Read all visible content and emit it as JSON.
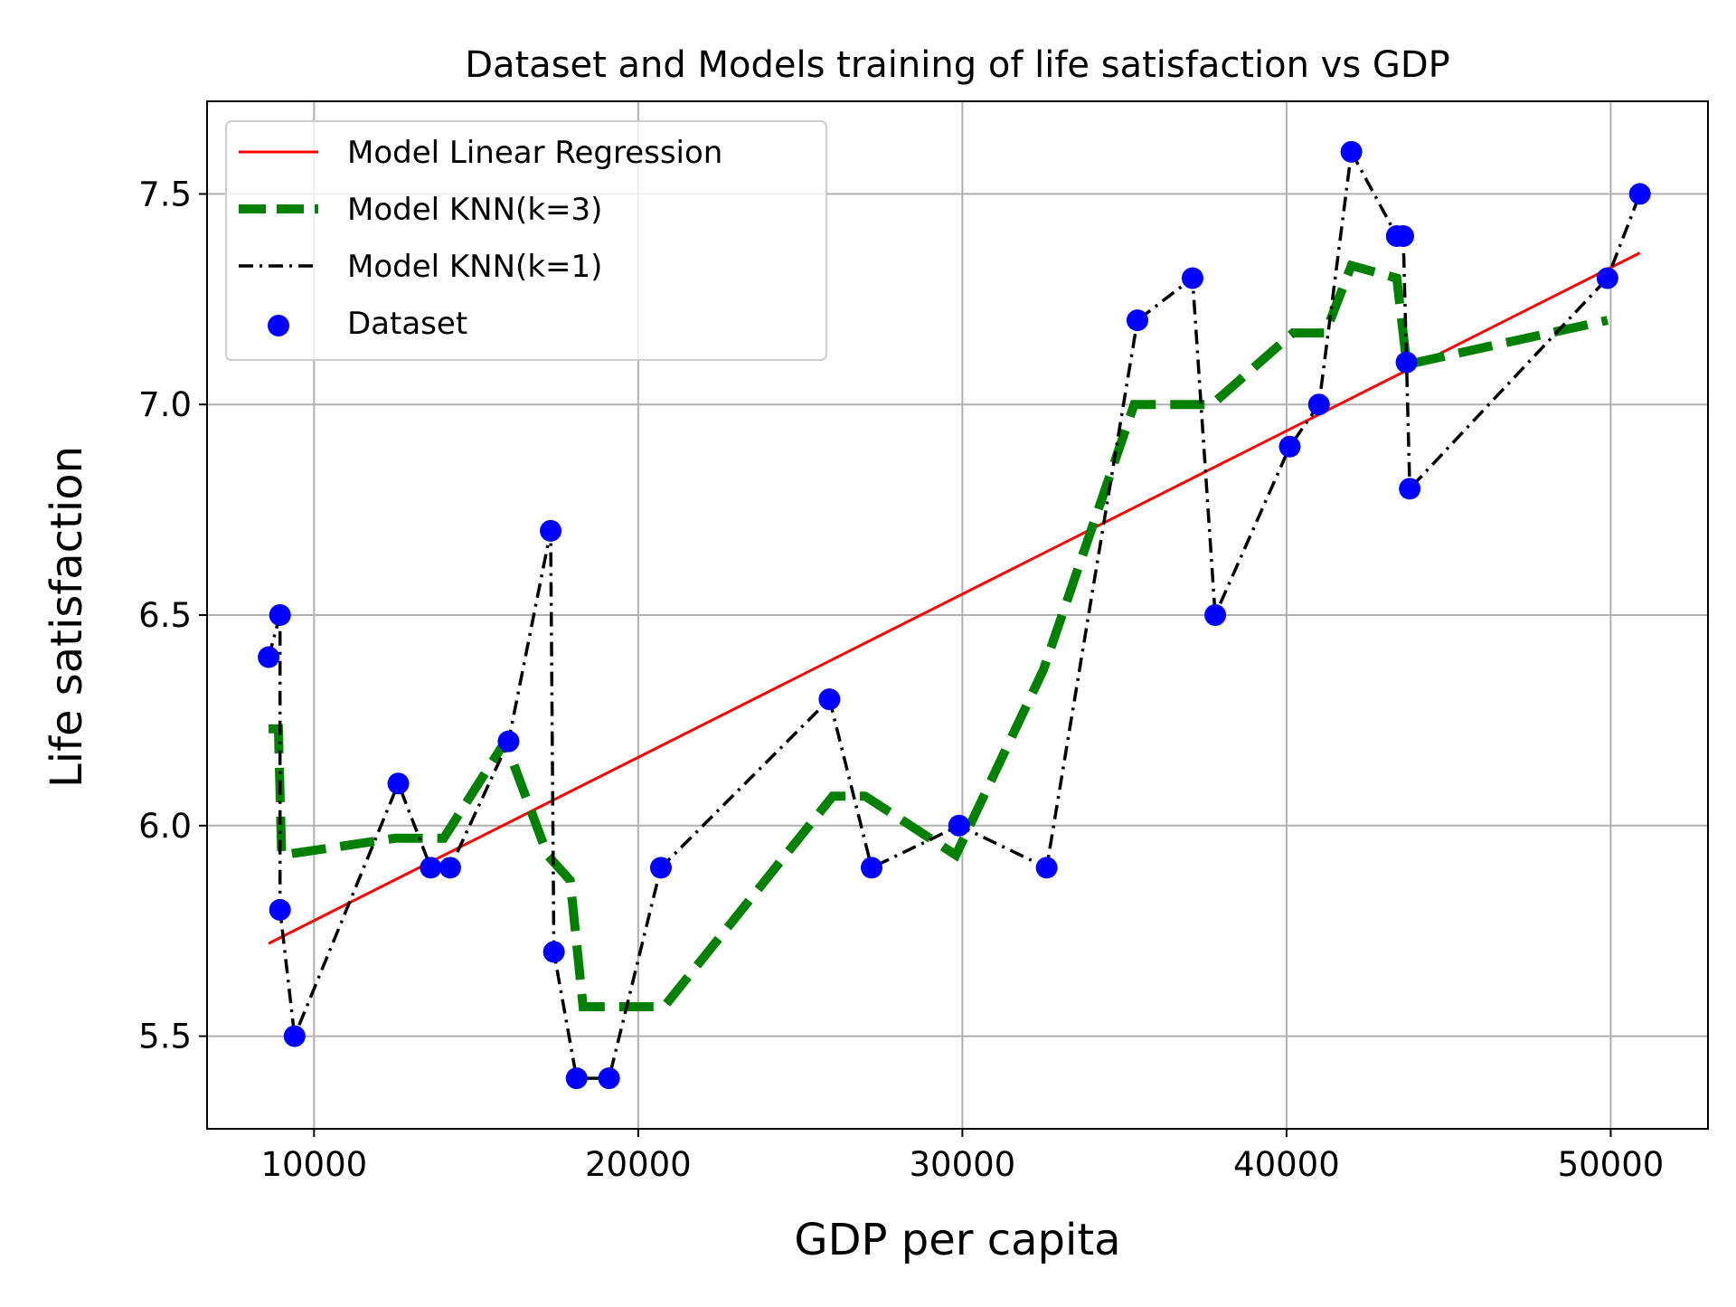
{
  "chart_data": {
    "type": "line",
    "title": "Dataset and Models training of life satisfaction vs GDP",
    "xlabel": "GDP per capita",
    "ylabel": "Life satisfaction",
    "xlim": [
      6700,
      53000
    ],
    "ylim": [
      5.28,
      7.72
    ],
    "grid": true,
    "legend_position": "top-left",
    "x_ticks": [
      {
        "value": 10000,
        "label": "10000"
      },
      {
        "value": 20000,
        "label": "20000"
      },
      {
        "value": 30000,
        "label": "30000"
      },
      {
        "value": 40000,
        "label": "40000"
      },
      {
        "value": 50000,
        "label": "50000"
      }
    ],
    "y_ticks": [
      {
        "value": 5.5,
        "label": "5.5"
      },
      {
        "value": 6.0,
        "label": "6.0"
      },
      {
        "value": 6.5,
        "label": "6.5"
      },
      {
        "value": 7.0,
        "label": "7.0"
      },
      {
        "value": 7.5,
        "label": "7.5"
      }
    ],
    "series": [
      {
        "name": "Model Linear Regression",
        "kind": "line",
        "color": "#ff0000",
        "style": "solid",
        "points": [
          [
            8600,
            5.72
          ],
          [
            50900,
            7.36
          ]
        ]
      },
      {
        "name": "Model KNN(k=3)",
        "kind": "line",
        "color": "#008000",
        "style": "dashed",
        "points": [
          [
            8600,
            6.23
          ],
          [
            8900,
            6.23
          ],
          [
            9000,
            5.93
          ],
          [
            12500,
            5.97
          ],
          [
            14000,
            5.97
          ],
          [
            15900,
            6.2
          ],
          [
            17200,
            5.93
          ],
          [
            17900,
            5.87
          ],
          [
            18300,
            5.57
          ],
          [
            19000,
            5.57
          ],
          [
            20800,
            5.57
          ],
          [
            26000,
            6.07
          ],
          [
            27000,
            6.07
          ],
          [
            29800,
            5.93
          ],
          [
            32500,
            6.37
          ],
          [
            35300,
            7.0
          ],
          [
            37700,
            7.0
          ],
          [
            40200,
            7.17
          ],
          [
            41200,
            7.17
          ],
          [
            42000,
            7.33
          ],
          [
            43400,
            7.3
          ],
          [
            43700,
            7.1
          ],
          [
            44000,
            7.1
          ],
          [
            49900,
            7.2
          ]
        ]
      },
      {
        "name": "Model KNN(k=1)",
        "kind": "line",
        "color": "#000000",
        "style": "dashdot",
        "points": [
          [
            8600,
            6.4
          ],
          [
            8950,
            6.5
          ],
          [
            8950,
            5.8
          ],
          [
            9400,
            5.5
          ],
          [
            12600,
            6.1
          ],
          [
            13600,
            5.9
          ],
          [
            14200,
            5.9
          ],
          [
            16000,
            6.2
          ],
          [
            17300,
            6.7
          ],
          [
            17400,
            5.7
          ],
          [
            18100,
            5.4
          ],
          [
            19100,
            5.4
          ],
          [
            20700,
            5.9
          ],
          [
            25900,
            6.3
          ],
          [
            27200,
            5.9
          ],
          [
            29900,
            6.0
          ],
          [
            32600,
            5.9
          ],
          [
            35400,
            7.2
          ],
          [
            37100,
            7.3
          ],
          [
            37800,
            6.5
          ],
          [
            40100,
            6.9
          ],
          [
            41000,
            7.0
          ],
          [
            42000,
            7.6
          ],
          [
            43400,
            7.4
          ],
          [
            43600,
            7.4
          ],
          [
            43700,
            7.1
          ],
          [
            43800,
            6.8
          ],
          [
            49900,
            7.3
          ],
          [
            50900,
            7.5
          ]
        ]
      },
      {
        "name": "Dataset",
        "kind": "scatter",
        "color": "#0000ff",
        "points": [
          [
            8600,
            6.4
          ],
          [
            8950,
            6.5
          ],
          [
            8950,
            5.8
          ],
          [
            9400,
            5.5
          ],
          [
            12600,
            6.1
          ],
          [
            13600,
            5.9
          ],
          [
            14200,
            5.9
          ],
          [
            16000,
            6.2
          ],
          [
            17300,
            6.7
          ],
          [
            17400,
            5.7
          ],
          [
            18100,
            5.4
          ],
          [
            19100,
            5.4
          ],
          [
            20700,
            5.9
          ],
          [
            25900,
            6.3
          ],
          [
            27200,
            5.9
          ],
          [
            29900,
            6.0
          ],
          [
            32600,
            5.9
          ],
          [
            35400,
            7.2
          ],
          [
            37100,
            7.3
          ],
          [
            37800,
            6.5
          ],
          [
            40100,
            6.9
          ],
          [
            41000,
            7.0
          ],
          [
            42000,
            7.6
          ],
          [
            43400,
            7.4
          ],
          [
            43600,
            7.4
          ],
          [
            43700,
            7.1
          ],
          [
            43800,
            6.8
          ],
          [
            49900,
            7.3
          ],
          [
            50900,
            7.5
          ]
        ]
      }
    ]
  }
}
